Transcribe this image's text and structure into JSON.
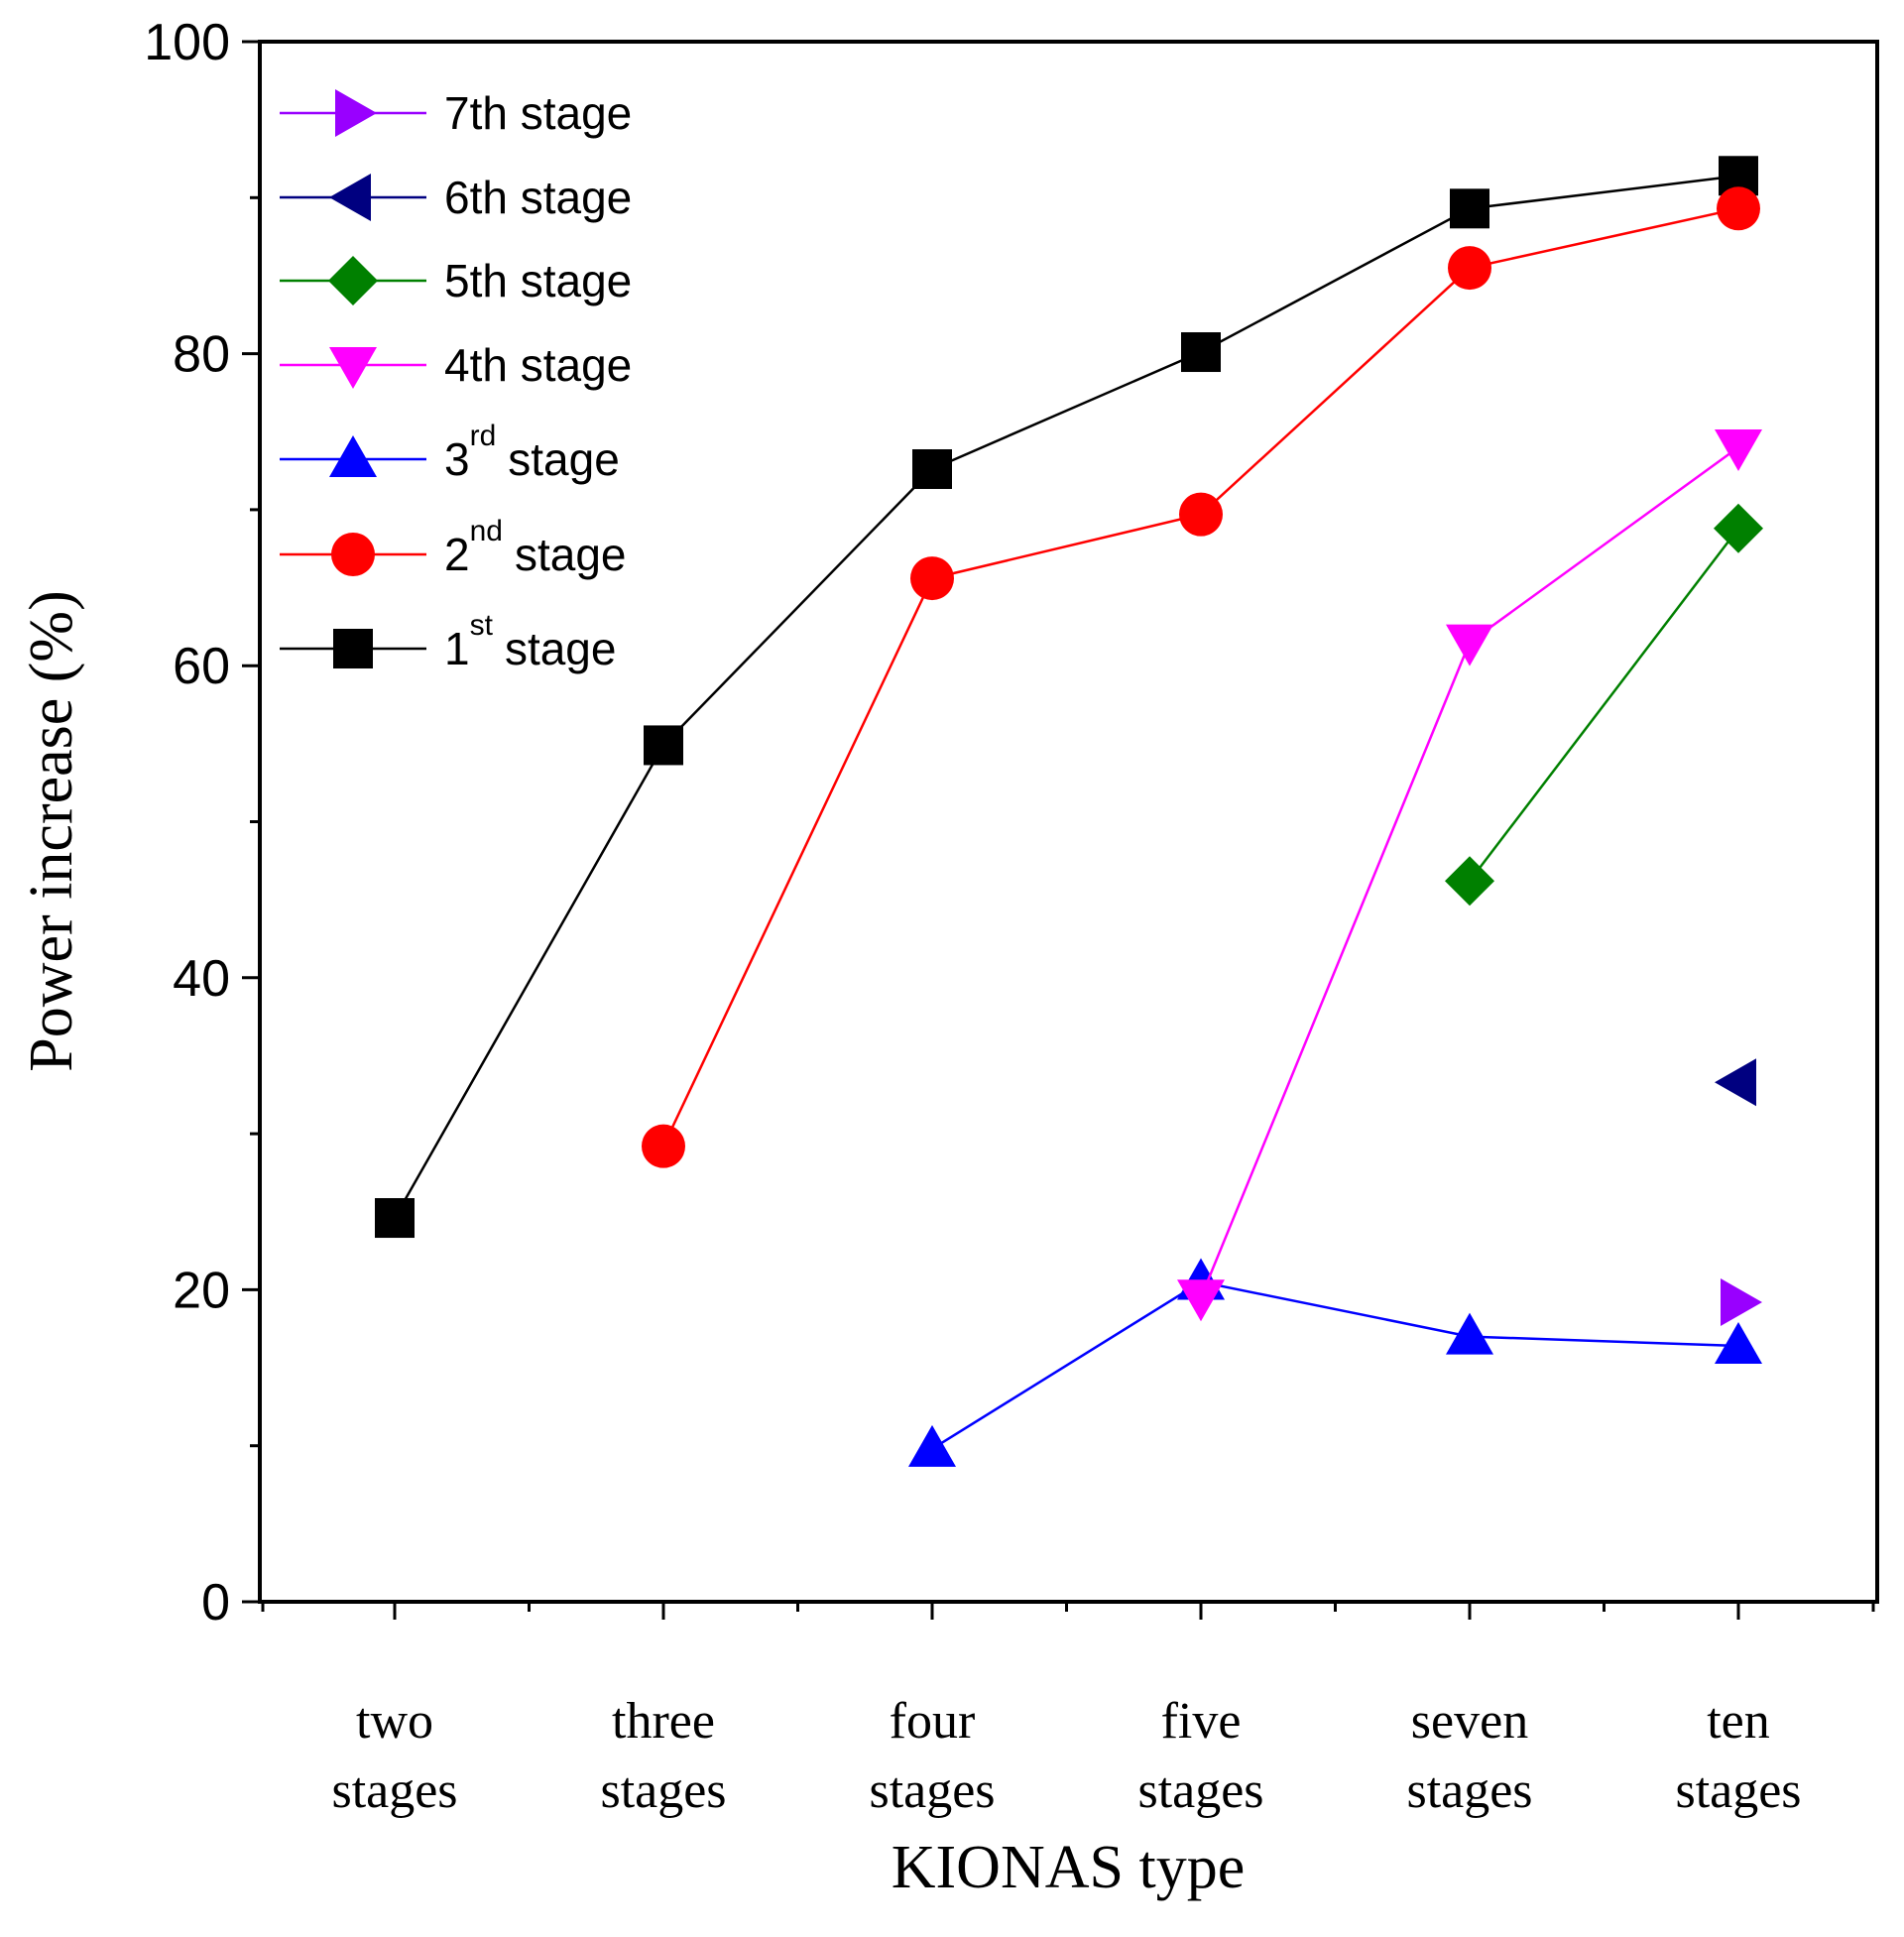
{
  "chart_data": {
    "type": "line",
    "categories": [
      [
        "two",
        "stages"
      ],
      [
        "three",
        "stages"
      ],
      [
        "four",
        "stages"
      ],
      [
        "five",
        "stages"
      ],
      [
        "seven",
        "stages"
      ],
      [
        "ten",
        "stages"
      ]
    ],
    "xlabel": "KIONAS type",
    "ylabel": "Power increase (%)",
    "ylim": [
      0,
      100
    ],
    "yticks": [
      0,
      20,
      40,
      60,
      80,
      100
    ],
    "legend_position": "top-left",
    "series": [
      {
        "key": "s7",
        "name": "7th stage",
        "name_main": "7th stage",
        "name_sup": "",
        "name_after": "",
        "color": "#9900ff",
        "marker": "triangle-right",
        "values": [
          null,
          null,
          null,
          null,
          null,
          19.2
        ]
      },
      {
        "key": "s6",
        "name": "6th stage",
        "name_main": "6th stage",
        "name_sup": "",
        "name_after": "",
        "color": "#000080",
        "marker": "triangle-left",
        "values": [
          null,
          null,
          null,
          null,
          null,
          33.3
        ]
      },
      {
        "key": "s5",
        "name": "5th stage",
        "name_main": "5th stage",
        "name_sup": "",
        "name_after": "",
        "color": "#008000",
        "marker": "diamond",
        "values": [
          null,
          null,
          null,
          null,
          46.2,
          68.8
        ]
      },
      {
        "key": "s4",
        "name": "4th stage",
        "name_main": "4th stage",
        "name_sup": "",
        "name_after": "",
        "color": "#ff00ff",
        "marker": "triangle-down",
        "values": [
          null,
          null,
          null,
          19.5,
          61.5,
          74.0
        ]
      },
      {
        "key": "s3",
        "name": "3rd stage",
        "name_main": "3",
        "name_sup": "rd",
        "name_after": "stage",
        "color": "#0000ff",
        "marker": "triangle-up",
        "values": [
          null,
          null,
          9.8,
          20.5,
          17.0,
          16.4
        ]
      },
      {
        "key": "s2",
        "name": "2nd stage",
        "name_main": "2",
        "name_sup": "nd",
        "name_after": "stage",
        "color": "#ff0000",
        "marker": "circle",
        "values": [
          null,
          29.2,
          65.6,
          69.7,
          85.5,
          89.3
        ]
      },
      {
        "key": "s1",
        "name": "1st stage",
        "name_main": "1",
        "name_sup": "st",
        "name_after": "stage",
        "color": "#000000",
        "marker": "square",
        "values": [
          24.6,
          54.9,
          72.6,
          80.1,
          89.3,
          91.4
        ]
      }
    ]
  }
}
